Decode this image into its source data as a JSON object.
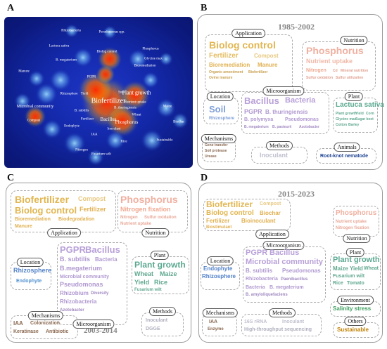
{
  "panels": {
    "a": "A",
    "b": "B",
    "c": "C",
    "d": "D"
  },
  "years": {
    "b": "1985-2002",
    "c": "2003-2014",
    "d": "2015-2023"
  },
  "colors": {
    "heat_bg": "#1328a8",
    "hot": "#ff2a00",
    "yellow": "#e0b050",
    "peach": "#f0b0a0",
    "purple": "#b098d0",
    "blue": "#5080c8",
    "teal": "#60a890",
    "brown": "#8a6850",
    "green": "#40a060",
    "gray": "#b0b0b0",
    "gold": "#c08000",
    "navy": "#1a4090"
  },
  "heatmap": {
    "labels": [
      "Rhizobacteria",
      "Pseudomonas spp.",
      "Lactuca sativa",
      "Biolog control",
      "Phosphorus",
      "Glycine max",
      "B. megaterium",
      "Bioremediation",
      "Manure",
      "PGPR",
      "Biofertilizer",
      "Plant growth",
      "Microbial community",
      "Bacillus",
      "B. subtilis",
      "Phosphorus",
      "Rhizosphere",
      "Soil",
      "Compost",
      "Yield",
      "Nutrient uptake",
      "Wheat",
      "Fertilizer",
      "B. thuringiensis",
      "Maize",
      "IAA",
      "Biochar",
      "Sustainable",
      "Endophyte",
      "Inoculant",
      "Nitrogen",
      "Rice",
      "Fusarium wilt"
    ]
  },
  "panel_b": {
    "groups": {
      "application": "Application",
      "nutrition": "Nutrition",
      "location": "Location",
      "microorganism": "Microorganism",
      "plant": "Plant",
      "mechanisms": "Mechanisms",
      "methods": "Methods",
      "animals": "Animals"
    },
    "application_words": [
      "Biolog control",
      "Fertilizer",
      "Compost",
      "Bioremediation",
      "Manure",
      "Organic amendment",
      "Biofertilizer",
      "Ovine manure"
    ],
    "nutrition_words": [
      "Phosphorus",
      "Nutrient uptake",
      "Nitrogen",
      "Cd",
      "Mineral nutrition",
      "Sulfur oxidation",
      "Sulfur utilization"
    ],
    "location_words": [
      "Soil",
      "Rhizosphere"
    ],
    "microorganism_words": [
      "Bacillus",
      "Bacteria",
      "PGPR",
      "B. thuringiensis",
      "B. polymyxa",
      "Pseudomonas",
      "B. megaterium",
      "B. pasteurii",
      "Azotobacter"
    ],
    "plant_words": [
      "Lactuca sativa",
      "Plant growth",
      "Yield",
      "Corn",
      "Glycine max",
      "Sugar beet",
      "Cotton",
      "Barley"
    ],
    "mechanisms_words": [
      "Gene transfer",
      "Soil protease",
      "Urease"
    ],
    "methods_words": [
      "Inoculant"
    ],
    "animals_words": [
      "Root-knot nematode"
    ]
  },
  "panel_c": {
    "groups": {
      "application": "Application",
      "nutrition": "Nutrition",
      "location": "Location",
      "plant": "Plant",
      "mechanisms": "Mechanisms",
      "microorganism": "Microorganism",
      "methods": "Methods"
    },
    "application_words": [
      "Biofertilizer",
      "Compost",
      "Biolog control",
      "Fertilizer",
      "Bioremediation",
      "Biodegradation",
      "Manure"
    ],
    "nutrition_words": [
      "Phosphorus",
      "Nitrogen fixation",
      "Nitrogen",
      "Sulfur oxidation",
      "Nutrient uptake"
    ],
    "location_words": [
      "Rhizosphere",
      "Endophyte"
    ],
    "microorganism_words": [
      "PGPR",
      "Bacillus",
      "B. subtilis",
      "Bacteria",
      "B.megaterium",
      "Microbial community",
      "Pseudomonas",
      "Rhizobium",
      "Diversity",
      "Rhizobacteria",
      "Azotobacter"
    ],
    "plant_words": [
      "Plant growth",
      "Wheat",
      "Maize",
      "Yield",
      "Rice",
      "Fusarium wilt"
    ],
    "mechanisms_words": [
      "IAA",
      "Colonization",
      "Keratinase",
      "Antibiotic"
    ],
    "methods_words": [
      "Inoculant",
      "DGGE"
    ]
  },
  "panel_d": {
    "groups": {
      "application": "Application",
      "microorganism": "Microorganism",
      "nutrition": "Nutrition",
      "location": "Location",
      "plant": "Plant",
      "environment": "Environment",
      "mechanisms": "Mechanisms",
      "methods": "Methods",
      "others": "Others"
    },
    "application_words": [
      "Biofertilizer",
      "Compost",
      "Biolog control",
      "Biochar",
      "Fertilizer",
      "Bioinoculant",
      "Biostimulant"
    ],
    "nutrition_words": [
      "Phosphorus",
      "Nutrient uptake",
      "Nitrogen fixation"
    ],
    "location_words": [
      "Endophyte",
      "Rhizosphere"
    ],
    "microorganism_words": [
      "PGPR",
      "Bacillus",
      "Microbial community",
      "B. subtilis",
      "Pseudomonas",
      "Rhizobacteria",
      "Paenibacillus",
      "Bacteria",
      "B. megaterium",
      "B. amyloliquefaciens"
    ],
    "plant_words": [
      "Plant growth",
      "Maize",
      "Yield",
      "Wheat",
      "Fusarium wilt",
      "Rice",
      "Tomato"
    ],
    "environment_words": [
      "Salinity stress"
    ],
    "mechanisms_words": [
      "IAA",
      "Enzyme"
    ],
    "methods_words": [
      "16S rRNA",
      "Inoculant",
      "High-throughput sequencing"
    ],
    "others_words": [
      "Sustainable"
    ]
  }
}
